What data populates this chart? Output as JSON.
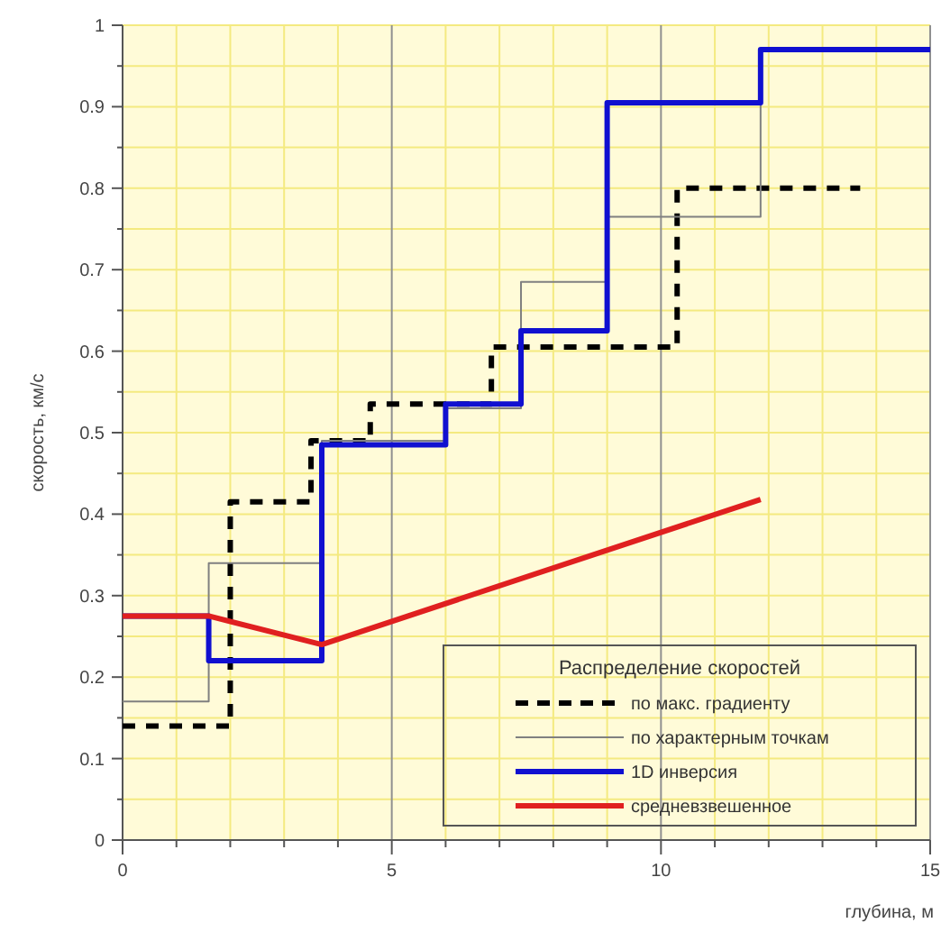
{
  "chart_data": {
    "type": "step",
    "xlabel": "глубина, м",
    "ylabel": "скорость, км/с",
    "legend_title": "Распределение скоростей",
    "legend": "bottom right",
    "grid": true,
    "xlim": [
      0,
      15
    ],
    "xticks": [
      0,
      {
        "value": 1,
        "label": null
      },
      {
        "value": 2,
        "label": null
      },
      {
        "value": 3,
        "label": null
      },
      {
        "value": 4,
        "label": null
      },
      5,
      {
        "value": 6,
        "label": null
      },
      {
        "value": 7,
        "label": null
      },
      {
        "value": 8,
        "label": null
      },
      {
        "value": 9,
        "label": null
      },
      10,
      {
        "value": 11,
        "label": null
      },
      {
        "value": 12,
        "label": null
      },
      {
        "value": 13,
        "label": null
      },
      {
        "value": 14,
        "label": null
      },
      15
    ],
    "ylim": [
      0,
      1
    ],
    "yticks": [
      0,
      {
        "value": 0.05,
        "label": null
      },
      0.1,
      {
        "value": 0.15,
        "label": null
      },
      0.2,
      {
        "value": 0.25,
        "label": null
      },
      0.3,
      {
        "value": 0.35,
        "label": null
      },
      0.4,
      {
        "value": 0.45,
        "label": null
      },
      0.5,
      {
        "value": 0.55,
        "label": null
      },
      0.6,
      {
        "value": 0.65,
        "label": null
      },
      0.7,
      {
        "value": 0.75,
        "label": null
      },
      0.8,
      {
        "value": 0.85,
        "label": null
      },
      0.9,
      {
        "value": 0.95,
        "label": null
      },
      1
    ],
    "series": [
      {
        "name": "по макс. градиенту",
        "color": "#000000",
        "line_style": "dashed",
        "x": [
          0,
          2,
          3.5,
          4.6,
          6.85,
          10.3,
          13.7
        ],
        "values": [
          0.14,
          0.415,
          0.49,
          0.535,
          0.605,
          0.8,
          0.8
        ]
      },
      {
        "name": "по характерным точкам",
        "color": "#808080",
        "x": [
          0,
          1.6,
          3.7,
          6,
          7.4,
          9,
          11.85,
          15
        ],
        "values": [
          0.17,
          0.34,
          0.49,
          0.53,
          0.685,
          0.765,
          0.97,
          0.97
        ]
      },
      {
        "name": "1D инверсия",
        "color": "#1010d0",
        "x": [
          0,
          1.6,
          3.7,
          6,
          7.4,
          9,
          11.85,
          15
        ],
        "values": [
          0.275,
          0.22,
          0.485,
          0.535,
          0.625,
          0.905,
          0.97,
          0.97
        ]
      },
      {
        "name": "средневзвешенное",
        "color": "#e02020",
        "type": "line",
        "x": [
          0,
          1.6,
          3.7,
          11.85
        ],
        "values": [
          0.275,
          0.275,
          0.24,
          0.418
        ]
      }
    ]
  }
}
